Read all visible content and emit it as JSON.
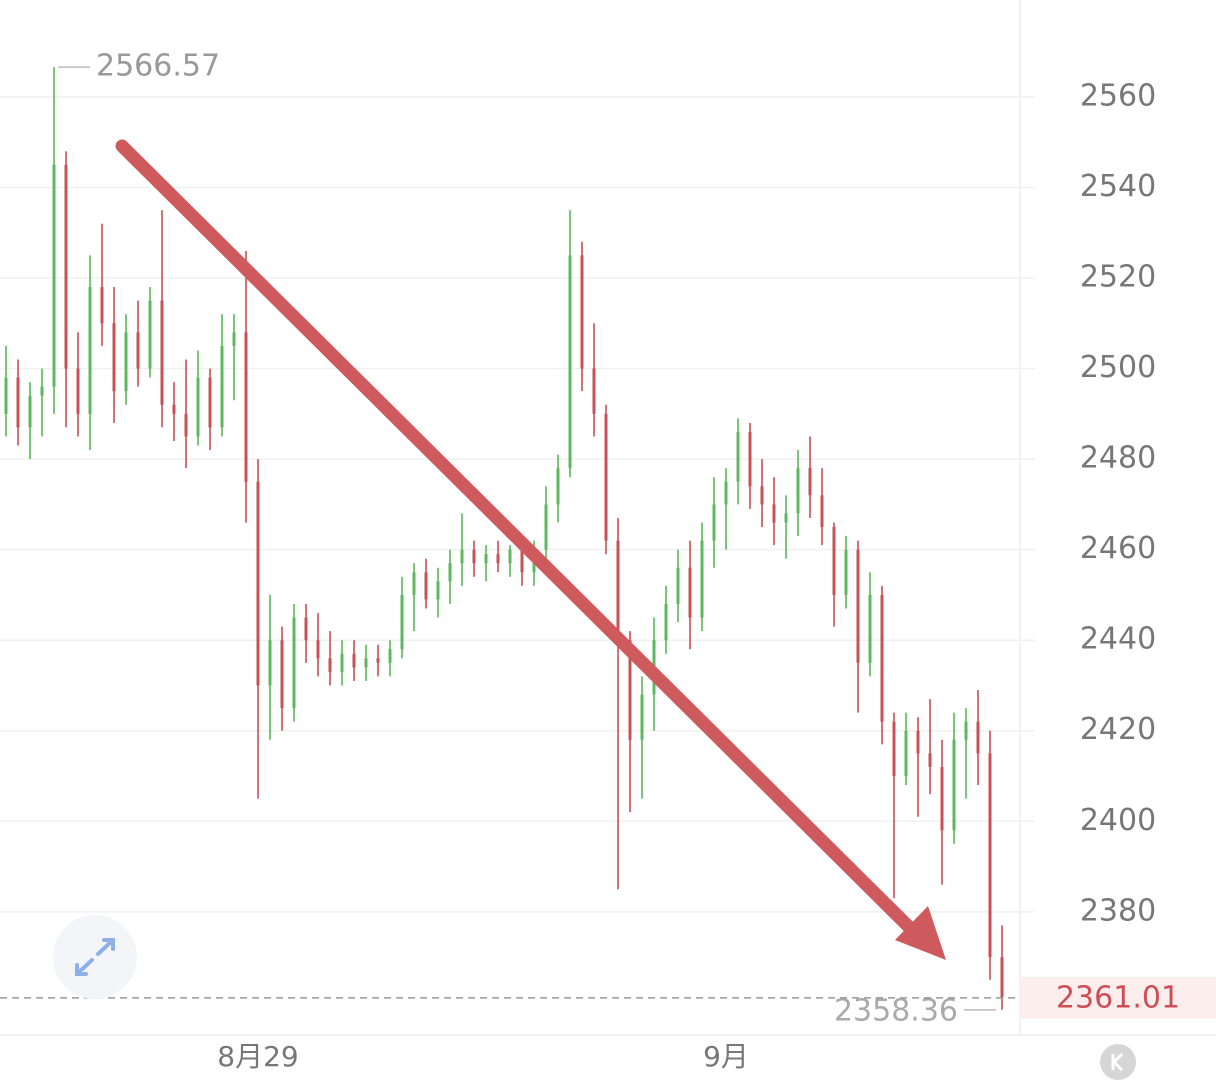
{
  "chart_data": {
    "type": "ohlc",
    "open": [
      2490,
      2498,
      2487,
      2494,
      2496,
      2545,
      2500,
      2490,
      2518,
      2510,
      2495,
      2508,
      2500,
      2515,
      2492,
      2490,
      2485,
      2498,
      2487,
      2505,
      2508,
      2475,
      2430,
      2440,
      2425,
      2445,
      2440,
      2436,
      2433,
      2437,
      2434,
      2436,
      2435,
      2438,
      2450,
      2455,
      2449,
      2453,
      2457,
      2460,
      2457,
      2459,
      2457,
      2460,
      2455,
      2460,
      2470,
      2478,
      2525,
      2500,
      2490,
      2462,
      2440,
      2418,
      2428,
      2440,
      2448,
      2456,
      2445,
      2462,
      2470,
      2475,
      2486,
      2474,
      2470,
      2466,
      2468,
      2478,
      2472,
      2465,
      2450,
      2460,
      2435,
      2450,
      2422,
      2410,
      2420,
      2415,
      2412,
      2398,
      2418,
      2422,
      2415,
      2370
    ],
    "high": [
      2505,
      2502,
      2497,
      2500,
      2566.57,
      2548,
      2508,
      2525,
      2532,
      2518,
      2512,
      2515,
      2518,
      2535,
      2497,
      2502,
      2504,
      2500,
      2512,
      2512,
      2526,
      2480,
      2450,
      2443,
      2448,
      2448,
      2446,
      2442,
      2440,
      2440,
      2439,
      2439,
      2440,
      2454,
      2457,
      2458,
      2456,
      2460,
      2468,
      2462,
      2461,
      2462,
      2461,
      2461,
      2462,
      2474,
      2481,
      2535,
      2528,
      2510,
      2492,
      2467,
      2442,
      2432,
      2445,
      2452,
      2460,
      2462,
      2466,
      2476,
      2478,
      2489,
      2488,
      2480,
      2476,
      2472,
      2482,
      2485,
      2478,
      2466,
      2463,
      2462,
      2455,
      2452,
      2424,
      2424,
      2423,
      2427,
      2418,
      2424,
      2425,
      2429,
      2420,
      2377
    ],
    "low": [
      2485,
      2483,
      2480,
      2485,
      2490,
      2487,
      2485,
      2482,
      2505,
      2488,
      2492,
      2496,
      2498,
      2487,
      2484,
      2478,
      2483,
      2482,
      2485,
      2493,
      2466,
      2405,
      2418,
      2420,
      2422,
      2435,
      2432,
      2430,
      2430,
      2431,
      2431,
      2432,
      2432,
      2436,
      2442,
      2447,
      2445,
      2448,
      2452,
      2454,
      2453,
      2455,
      2454,
      2452,
      2452,
      2458,
      2466,
      2476,
      2495,
      2485,
      2459,
      2385,
      2402,
      2405,
      2420,
      2437,
      2444,
      2438,
      2442,
      2456,
      2460,
      2470,
      2469,
      2465,
      2461,
      2458,
      2463,
      2467,
      2461,
      2443,
      2447,
      2424,
      2432,
      2417,
      2383,
      2408,
      2401,
      2406,
      2386,
      2395,
      2405,
      2408,
      2365,
      2358.36
    ],
    "close": [
      2498,
      2487,
      2494,
      2496,
      2545,
      2500,
      2490,
      2518,
      2510,
      2495,
      2508,
      2500,
      2515,
      2492,
      2490,
      2485,
      2498,
      2487,
      2505,
      2508,
      2475,
      2430,
      2440,
      2425,
      2445,
      2440,
      2436,
      2433,
      2437,
      2434,
      2436,
      2435,
      2438,
      2450,
      2455,
      2449,
      2453,
      2457,
      2460,
      2457,
      2459,
      2457,
      2460,
      2455,
      2460,
      2470,
      2478,
      2525,
      2500,
      2490,
      2462,
      2440,
      2418,
      2428,
      2440,
      2448,
      2456,
      2445,
      2462,
      2470,
      2475,
      2486,
      2474,
      2470,
      2466,
      2468,
      2478,
      2472,
      2465,
      2450,
      2460,
      2435,
      2450,
      2422,
      2410,
      2420,
      2415,
      2412,
      2398,
      2418,
      2422,
      2415,
      2370,
      2361.01
    ],
    "up_color": "#5cb85c",
    "down_color": "#cc4f55",
    "xlim": [
      -0.5,
      84.5
    ],
    "xticks": [
      {
        "value": 21,
        "label": "8月29"
      },
      {
        "value": 60,
        "label": "9月"
      }
    ],
    "ylim": [
      2352.8,
      2581.4
    ],
    "yticks": [
      2380,
      2400,
      2420,
      2440,
      2460,
      2480,
      2500,
      2520,
      2540,
      2560
    ],
    "grid": true
  }
}
